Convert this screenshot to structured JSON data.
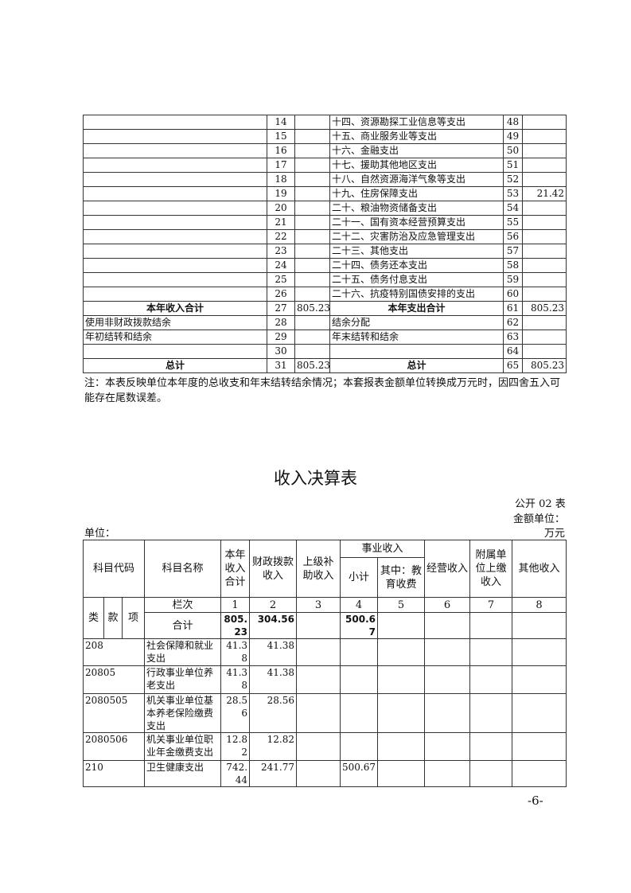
{
  "top_table": {
    "rows": [
      {
        "left": "",
        "ln": "14",
        "lv": "",
        "right": "十四、资源勘探工业信息等支出",
        "rn": "48",
        "rv": ""
      },
      {
        "left": "",
        "ln": "15",
        "lv": "",
        "right": "十五、商业服务业等支出",
        "rn": "49",
        "rv": ""
      },
      {
        "left": "",
        "ln": "16",
        "lv": "",
        "right": "十六、金融支出",
        "rn": "50",
        "rv": ""
      },
      {
        "left": "",
        "ln": "17",
        "lv": "",
        "right": "十七、援助其他地区支出",
        "rn": "51",
        "rv": ""
      },
      {
        "left": "",
        "ln": "18",
        "lv": "",
        "right": "十八、自然资源海洋气象等支出",
        "rn": "52",
        "rv": ""
      },
      {
        "left": "",
        "ln": "19",
        "lv": "",
        "right": "十九、住房保障支出",
        "rn": "53",
        "rv": "21.42"
      },
      {
        "left": "",
        "ln": "20",
        "lv": "",
        "right": "二十、粮油物资储备支出",
        "rn": "54",
        "rv": ""
      },
      {
        "left": "",
        "ln": "21",
        "lv": "",
        "right": "二十一、国有资本经营预算支出",
        "rn": "55",
        "rv": ""
      },
      {
        "left": "",
        "ln": "22",
        "lv": "",
        "right": "二十二、灾害防治及应急管理支出",
        "rn": "56",
        "rv": ""
      },
      {
        "left": "",
        "ln": "23",
        "lv": "",
        "right": "二十三、其他支出",
        "rn": "57",
        "rv": ""
      },
      {
        "left": "",
        "ln": "24",
        "lv": "",
        "right": "二十四、债务还本支出",
        "rn": "58",
        "rv": ""
      },
      {
        "left": "",
        "ln": "25",
        "lv": "",
        "right": "二十五、债务付息支出",
        "rn": "59",
        "rv": ""
      },
      {
        "left": "",
        "ln": "26",
        "lv": "",
        "right": "二十六、抗疫特别国债安排的支出",
        "rn": "60",
        "rv": ""
      },
      {
        "left": "本年收入合计",
        "ln": "27",
        "lv": "805.23",
        "right": "本年支出合计",
        "rn": "61",
        "rv": "805.23",
        "bold": true
      },
      {
        "left": "使用非财政拨款结余",
        "ln": "28",
        "lv": "",
        "right": "结余分配",
        "rn": "62",
        "rv": ""
      },
      {
        "left": "年初结转和结余",
        "ln": "29",
        "lv": "",
        "right": "年末结转和结余",
        "rn": "63",
        "rv": ""
      },
      {
        "left": "",
        "ln": "30",
        "lv": "",
        "right": "",
        "rn": "64",
        "rv": ""
      },
      {
        "left": "总计",
        "ln": "31",
        "lv": "805.23",
        "right": "总计",
        "rn": "65",
        "rv": "805.23",
        "bold": true
      }
    ]
  },
  "note": "注：本表反映单位本年度的总收支和年末结转结余情况；本套报表金额单位转换成万元时，因四舍五入可能存在尾数误差。",
  "title": "收入决算表",
  "form_no": "公开 02 表",
  "amount_unit_label": "金额单位：",
  "amount_unit": "万元",
  "unit_label": "单位：",
  "income_table": {
    "headers": {
      "code": "科目代码",
      "name": "科目名称",
      "total": "本年收入合计",
      "fiscal": "财政拨款收入",
      "superior": "上级补助收入",
      "business": "事业收入",
      "subtotal": "小计",
      "education": "其中：教育收费",
      "operating": "经营收入",
      "affiliated": "附属单位上缴收入",
      "other": "其他收入",
      "lei": "类",
      "kuan": "款",
      "xiang": "项",
      "column_no": "栏次",
      "nums": [
        "1",
        "2",
        "3",
        "4",
        "5",
        "6",
        "7",
        "8"
      ]
    },
    "total_row": {
      "label": "合计",
      "values": [
        "805.23",
        "304.56",
        "",
        "500.67",
        "",
        "",
        "",
        ""
      ]
    },
    "rows": [
      {
        "code": "208",
        "name": "社会保障和就业支出",
        "values": [
          "41.38",
          "41.38",
          "",
          "",
          "",
          "",
          "",
          ""
        ]
      },
      {
        "code": "20805",
        "name": "行政事业单位养老支出",
        "values": [
          "41.38",
          "41.38",
          "",
          "",
          "",
          "",
          "",
          ""
        ]
      },
      {
        "code": "2080505",
        "name": "机关事业单位基本养老保险缴费支出",
        "values": [
          "28.56",
          "28.56",
          "",
          "",
          "",
          "",
          "",
          ""
        ]
      },
      {
        "code": "2080506",
        "name": "机关事业单位职业年金缴费支出",
        "values": [
          "12.82",
          "12.82",
          "",
          "",
          "",
          "",
          "",
          ""
        ]
      },
      {
        "code": "210",
        "name": "卫生健康支出",
        "values": [
          "742.44",
          "241.77",
          "",
          "500.67",
          "",
          "",
          "",
          ""
        ]
      }
    ]
  },
  "page_number": "-6-"
}
